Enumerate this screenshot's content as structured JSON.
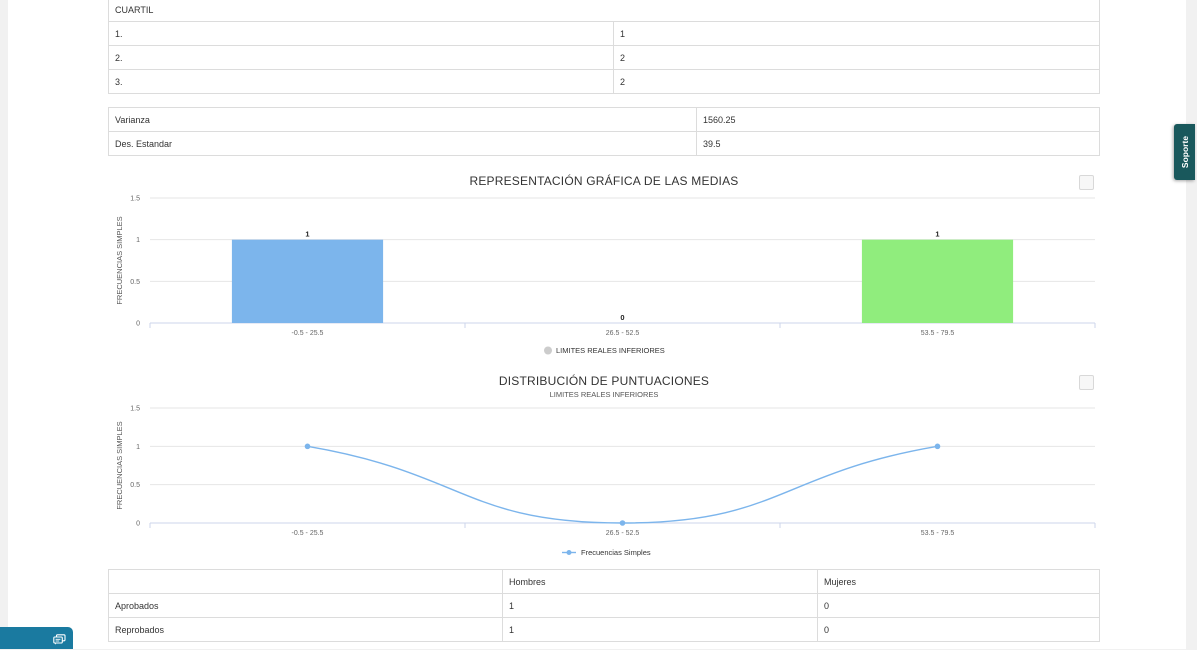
{
  "quartile_table": {
    "header": "CUARTIL",
    "rows": [
      {
        "label": "1.",
        "value": "1"
      },
      {
        "label": "2.",
        "value": "2"
      },
      {
        "label": "3.",
        "value": "2"
      }
    ]
  },
  "stats_table": {
    "rows": [
      {
        "label": "Varianza",
        "value": "1560.25"
      },
      {
        "label": "Des. Estandar",
        "value": "39.5"
      }
    ]
  },
  "chart_data": [
    {
      "type": "bar",
      "title": "REPRESENTACIÓN GRÁFICA DE LAS MEDIAS",
      "ylabel": "FRECUENCIAS SIMPLES",
      "categories": [
        "-0.5 - 25.5",
        "26.5 - 52.5",
        "53.5 - 79.5"
      ],
      "values": [
        1,
        0,
        1
      ],
      "data_labels": [
        "1",
        "0",
        "1"
      ],
      "bar_colors": [
        "#7cb5ec",
        "#434348",
        "#90ed7d"
      ],
      "yticks": [
        "0",
        "0.5",
        "1",
        "1.5"
      ],
      "ylim": [
        0,
        1.5
      ],
      "grid": true,
      "legend": {
        "label": "LIMITES REALES INFERIORES",
        "placement": "bottom-center",
        "color": "#cccccc"
      }
    },
    {
      "type": "line",
      "title": "DISTRIBUCIÓN DE PUNTUACIONES",
      "subtitle": "LIMITES REALES INFERIORES",
      "ylabel": "FRECUENCIAS SIMPLES",
      "categories": [
        "-0.5 - 25.5",
        "26.5 - 52.5",
        "53.5 - 79.5"
      ],
      "series": [
        {
          "name": "Frecuencias Simples",
          "values": [
            1,
            0,
            1
          ],
          "color": "#7cb5ec"
        }
      ],
      "yticks": [
        "0",
        "0.5",
        "1",
        "1.5"
      ],
      "ylim": [
        0,
        1.5
      ],
      "grid": true,
      "smooth": true,
      "legend": {
        "placement": "bottom-center"
      }
    }
  ],
  "gender_table": {
    "headers": [
      "",
      "Hombres",
      "Mujeres"
    ],
    "rows": [
      {
        "label": "Aprobados",
        "hombres": "1",
        "mujeres": "0"
      },
      {
        "label": "Reprobados",
        "hombres": "1",
        "mujeres": "0"
      }
    ]
  },
  "soporte": {
    "label": "Soporte"
  },
  "chat_widget": {
    "icon": "chat-icon"
  },
  "colors": {
    "accent": "#19585c",
    "chat": "#1a7aa0"
  }
}
